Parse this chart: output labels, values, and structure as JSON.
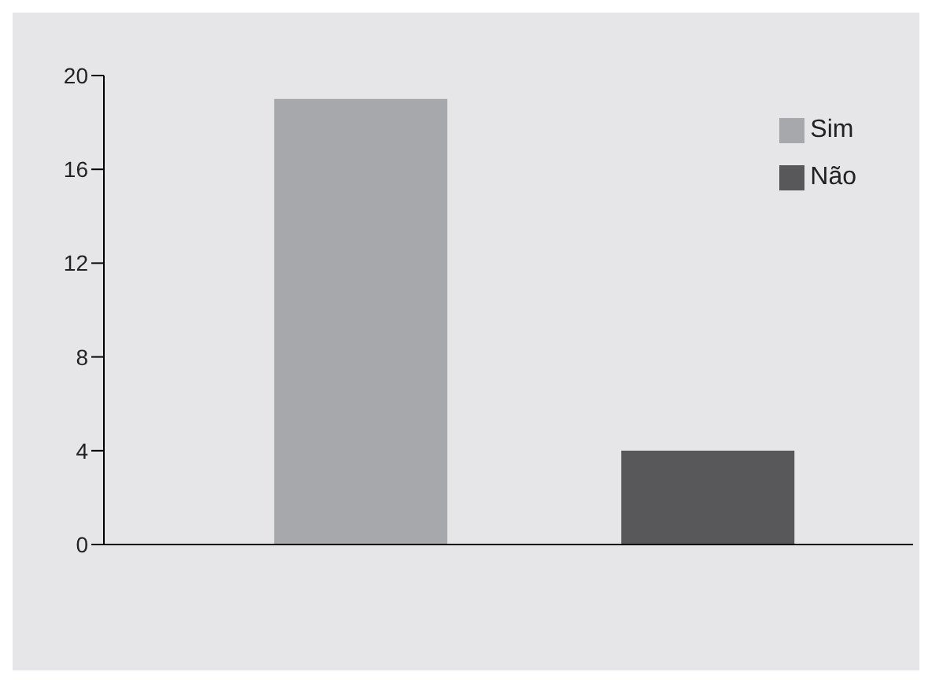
{
  "chart_data": {
    "type": "bar",
    "categories": [
      null,
      null
    ],
    "stacked": true,
    "series": [
      {
        "name": "Sim",
        "color": "#a7a8ab",
        "values": [
          19,
          null
        ]
      },
      {
        "name": "Não",
        "color": "#58585a",
        "values": [
          null,
          4
        ]
      }
    ],
    "ylim": [
      0,
      20
    ],
    "yticks": [
      0,
      4,
      8,
      12,
      16,
      20
    ],
    "grid": false,
    "legend": "top right"
  }
}
